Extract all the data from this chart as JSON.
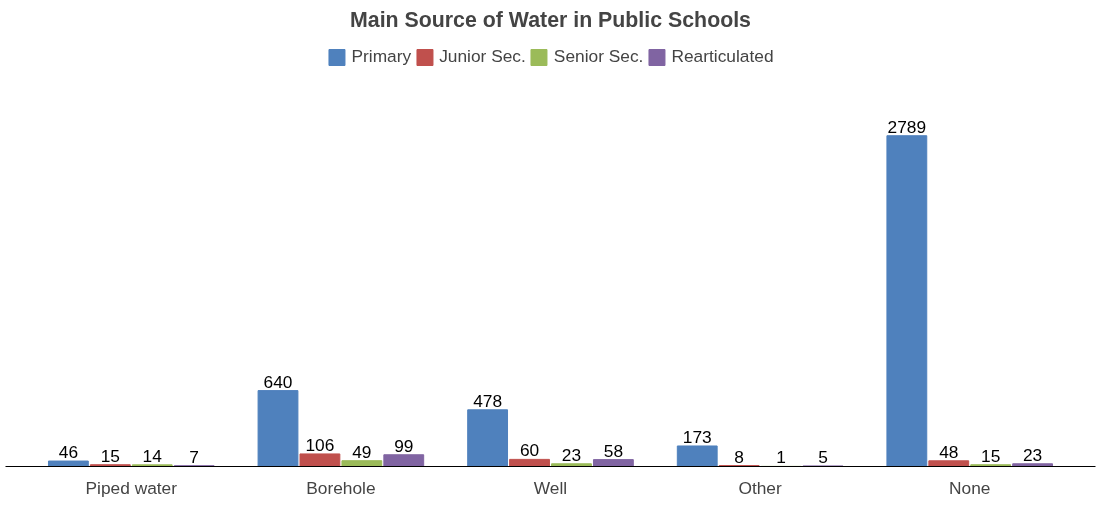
{
  "chart_data": {
    "type": "bar",
    "title": "Main Source of Water in Public Schools",
    "categories": [
      "Piped water",
      "Borehole",
      "Well",
      "Other",
      "None"
    ],
    "series": [
      {
        "name": "Primary",
        "color": "#4f81bd",
        "values": [
          46,
          640,
          478,
          173,
          2789
        ]
      },
      {
        "name": "Junior Sec.",
        "color": "#c0504d",
        "values": [
          15,
          106,
          60,
          8,
          48
        ]
      },
      {
        "name": "Senior Sec.",
        "color": "#9bbb59",
        "values": [
          14,
          49,
          23,
          1,
          15
        ]
      },
      {
        "name": "Rearticulated",
        "color": "#8064a2",
        "values": [
          7,
          99,
          58,
          5,
          23
        ]
      }
    ],
    "data_labels": true,
    "legend": "top",
    "grid": false,
    "tick_labels": "x"
  }
}
